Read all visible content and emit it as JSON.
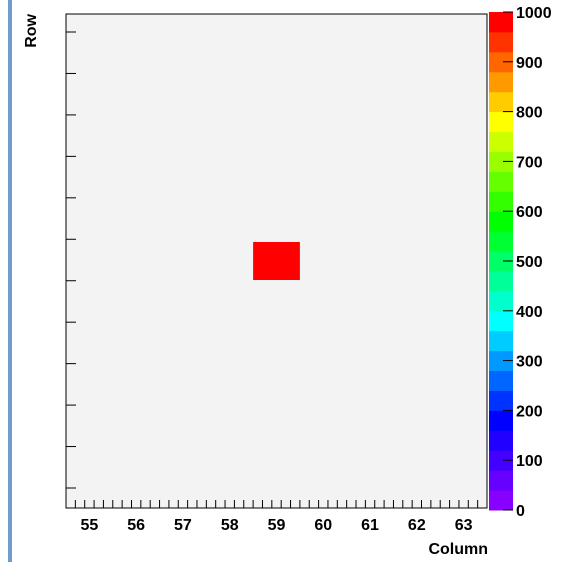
{
  "chart_data": {
    "type": "heatmap",
    "title": "",
    "xlabel": "Column",
    "ylabel": "Row",
    "x_ticks": [
      "55",
      "56",
      "57",
      "58",
      "59",
      "60",
      "61",
      "62",
      "63"
    ],
    "xlim": [
      54.5,
      63.5
    ],
    "x_minor_per_unit": 5,
    "y_tick_count": 12,
    "cells": [
      {
        "column": 59,
        "row": 0,
        "value": 1000
      }
    ],
    "zlim": [
      0,
      1000
    ],
    "color_scale_labels": [
      "0",
      "100",
      "200",
      "300",
      "400",
      "500",
      "600",
      "700",
      "800",
      "900",
      "1000"
    ],
    "palette": [
      "#8800ff",
      "#6600ff",
      "#4400ff",
      "#2200ff",
      "#0000ff",
      "#0033ff",
      "#0066ff",
      "#0099ff",
      "#00ccff",
      "#00ffff",
      "#00ffcc",
      "#00ff99",
      "#00ff66",
      "#00ff33",
      "#00ff00",
      "#33ff00",
      "#66ff00",
      "#99ff00",
      "#ccff00",
      "#ffff00",
      "#ffcc00",
      "#ff9900",
      "#ff6600",
      "#ff3300",
      "#ff0000"
    ],
    "colors": {
      "frame_background": "#f3f3f3",
      "pad_border": "#6e9ec9",
      "cell": "#ff0000"
    }
  }
}
